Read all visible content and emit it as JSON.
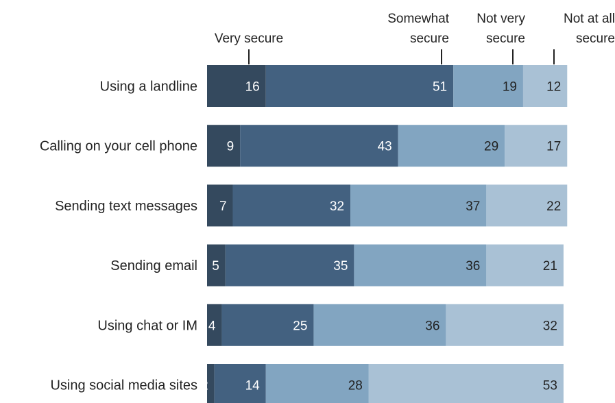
{
  "chart_data": {
    "type": "bar",
    "orientation": "horizontal",
    "stacked": true,
    "categories": [
      "Using a landline",
      "Calling on your cell phone",
      "Sending text messages",
      "Sending email",
      "Using chat or IM",
      "Using social media sites"
    ],
    "series": [
      {
        "name": "Very secure",
        "values": [
          16,
          9,
          7,
          5,
          4,
          2
        ],
        "color": "#34495e"
      },
      {
        "name": "Somewhat secure",
        "values": [
          51,
          43,
          32,
          35,
          25,
          14
        ],
        "color": "#436180"
      },
      {
        "name": "Not very secure",
        "values": [
          19,
          29,
          37,
          36,
          36,
          28
        ],
        "color": "#82a5c1"
      },
      {
        "name": "Not at all secure",
        "values": [
          12,
          17,
          22,
          21,
          32,
          53
        ],
        "color": "#a9c1d5"
      }
    ],
    "legend_lines": [
      [
        "Very secure"
      ],
      [
        "Somewhat",
        "secure"
      ],
      [
        "Not very",
        "secure"
      ],
      [
        "Not at all",
        "secure"
      ]
    ],
    "label_colors": [
      "#ffffff",
      "#ffffff",
      "#222222",
      "#222222"
    ],
    "legend_placement": "top",
    "grid": false,
    "title": "",
    "xlabel": "",
    "ylabel": ""
  }
}
